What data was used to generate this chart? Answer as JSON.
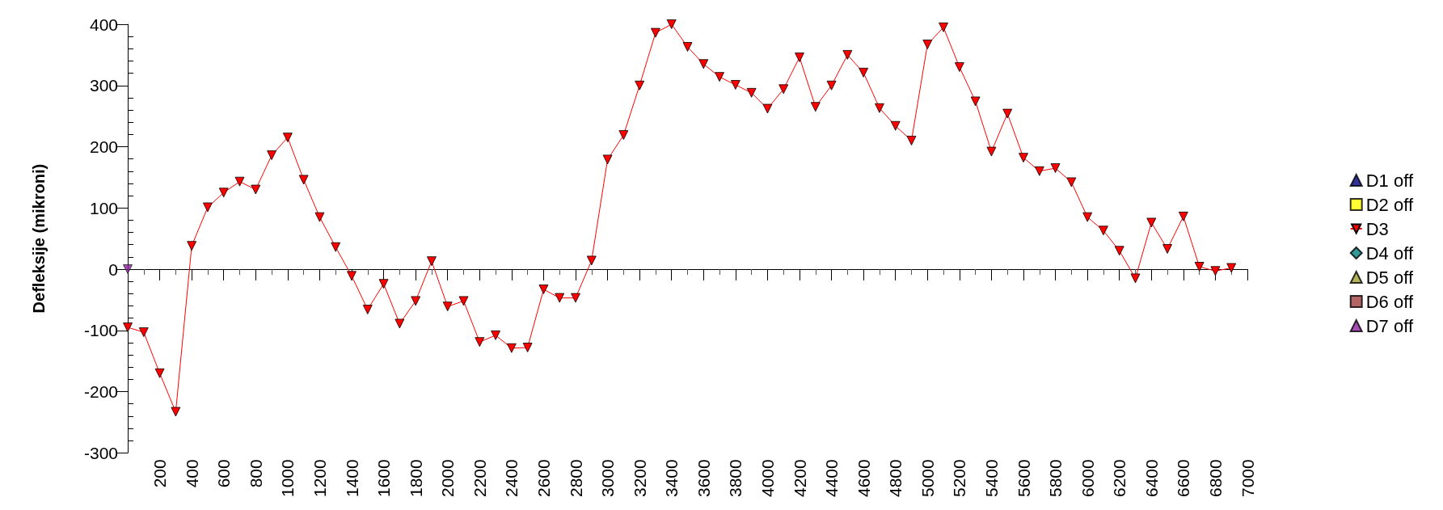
{
  "chart_data": {
    "type": "line",
    "ylabel": "Defleksije (mikroni)",
    "xlim": [
      0,
      7000
    ],
    "xticks": [
      200,
      400,
      600,
      800,
      1000,
      1200,
      1400,
      1600,
      1800,
      2000,
      2200,
      2400,
      2600,
      2800,
      3000,
      3200,
      3400,
      3600,
      3800,
      4000,
      4200,
      4400,
      4600,
      4800,
      5000,
      5200,
      5400,
      5600,
      5800,
      6000,
      6200,
      6400,
      6600,
      6800,
      7000
    ],
    "ylim": [
      -300,
      400
    ],
    "yticks": [
      -300,
      -200,
      -100,
      0,
      100,
      200,
      300,
      400
    ],
    "legend": "right",
    "line_style": "solid",
    "series": [
      {
        "name": "D1 off",
        "type": "scatter",
        "marker": "triangle",
        "color": "#000080"
      },
      {
        "name": "D2 off",
        "type": "scatter",
        "marker": "square",
        "color": "#ffff00"
      },
      {
        "name": "D3",
        "marker": "triangle-down",
        "color": "#ff0000",
        "x": [
          0,
          100,
          200,
          300,
          400,
          500,
          600,
          700,
          800,
          900,
          1000,
          1100,
          1200,
          1300,
          1400,
          1500,
          1600,
          1700,
          1800,
          1900,
          2000,
          2100,
          2200,
          2300,
          2400,
          2500,
          2600,
          2700,
          2800,
          2900,
          3000,
          3100,
          3200,
          3300,
          3400,
          3500,
          3600,
          3700,
          3800,
          3900,
          4000,
          4100,
          4200,
          4300,
          4400,
          4500,
          4600,
          4700,
          4800,
          4900,
          5000,
          5100,
          5200,
          5300,
          5400,
          5500,
          5600,
          5700,
          5800,
          5900,
          6000,
          6100,
          6200,
          6300,
          6400,
          6500,
          6600,
          6700,
          6800,
          6900
        ],
        "values": [
          -95,
          -103,
          -170,
          -233,
          38,
          101,
          125,
          143,
          130,
          186,
          215,
          146,
          85,
          36,
          -11,
          -66,
          -24,
          -89,
          -52,
          13,
          -61,
          -52,
          -119,
          -108,
          -129,
          -128,
          -33,
          -47,
          -47,
          14,
          179,
          219,
          300,
          386,
          400,
          363,
          335,
          314,
          301,
          288,
          262,
          294,
          346,
          265,
          300,
          350,
          321,
          263,
          234,
          210,
          367,
          395,
          330,
          274,
          192,
          254,
          182,
          160,
          165,
          142,
          85,
          63,
          30,
          -15,
          76,
          33,
          86,
          4,
          -3,
          2
        ]
      },
      {
        "name": "D4 off",
        "type": "scatter",
        "marker": "diamond",
        "color": "#008080"
      },
      {
        "name": "D5 off",
        "type": "scatter",
        "marker": "triangle",
        "color": "#a0a030"
      },
      {
        "name": "D6 off",
        "type": "scatter",
        "marker": "square",
        "color": "#a04040"
      },
      {
        "name": "D7 off",
        "type": "scatter",
        "marker": "triangle-down",
        "color": "#9020a0",
        "x": [
          0
        ],
        "values": [
          0
        ]
      }
    ]
  }
}
